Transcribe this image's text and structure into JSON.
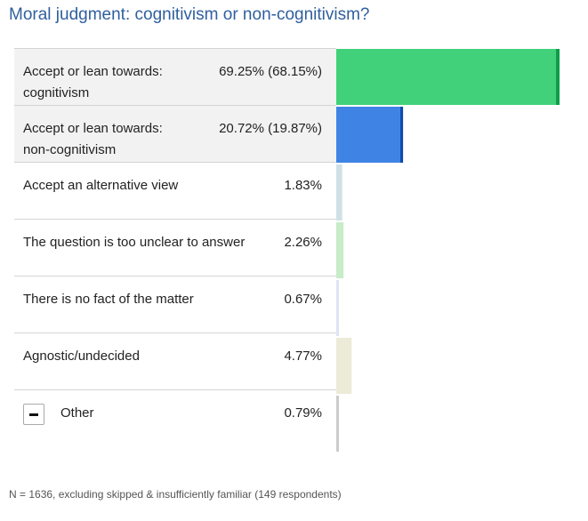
{
  "title": "Moral judgment: cognitivism or non-cognitivism?",
  "footnote": "N = 1636, excluding skipped & insufficiently familiar (149 respondents)",
  "chart_data": {
    "type": "bar",
    "orientation": "horizontal",
    "categories": [
      "Accept or lean towards: cognitivism",
      "Accept or lean towards: non-cognitivism",
      "Accept an alternative view",
      "The question is too unclear to answer",
      "There is no fact of the matter",
      "Agnostic/undecided",
      "Other"
    ],
    "rows": [
      {
        "label": "Accept or lean towards: cognitivism",
        "value_text": "69.25% (68.15%)",
        "value": 69.25,
        "accept": 68.15,
        "colors": [
          "#41d17a",
          "#0f9e48"
        ]
      },
      {
        "label": "Accept or lean towards: non-cognitivism",
        "value_text": "20.72% (19.87%)",
        "value": 20.72,
        "accept": 19.87,
        "colors": [
          "#3f84e5",
          "#0d4aaa"
        ]
      },
      {
        "label": "Accept an alternative view",
        "value_text": "1.83%",
        "value": 1.83,
        "colors": [
          "#cfe0e6"
        ]
      },
      {
        "label": "The question is too unclear to answer",
        "value_text": "2.26%",
        "value": 2.26,
        "colors": [
          "#c8ecc8"
        ]
      },
      {
        "label": "There is no fact of the matter",
        "value_text": "0.67%",
        "value": 0.67,
        "colors": [
          "#dfe4f4"
        ]
      },
      {
        "label": "Agnostic/undecided",
        "value_text": "4.77%",
        "value": 4.77,
        "colors": [
          "#ecebd8"
        ]
      },
      {
        "label": "Other",
        "value_text": "0.79%",
        "value": 0.79,
        "colors": [
          "#cccccc"
        ]
      }
    ],
    "xlim": [
      0,
      100
    ],
    "grid": false,
    "legend": "none"
  }
}
